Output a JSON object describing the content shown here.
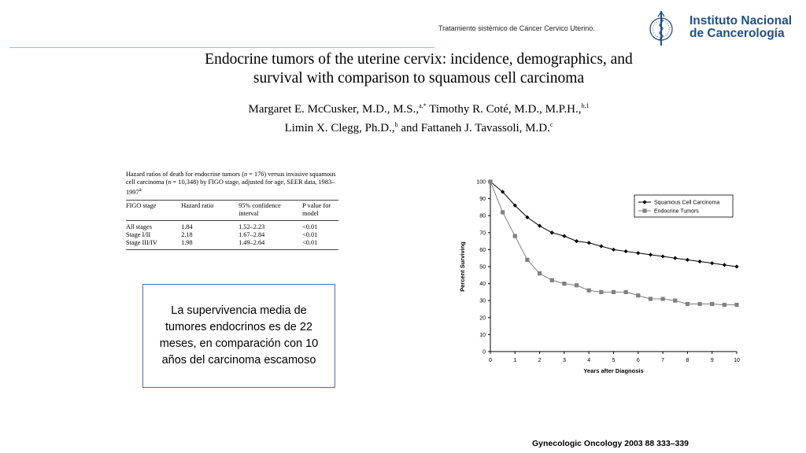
{
  "header": {
    "presentation_title": "Tratamiento sistémico  de Cáncer Cervico Uterino.",
    "institution_line1": "Instituto Nacional",
    "institution_line2": "de Cancerología",
    "brand_color": "#1f4f8c",
    "rule_color": "#8fc7cf"
  },
  "paper": {
    "title_line1": "Endocrine tumors of the uterine cervix: incidence, demographics, and",
    "title_line2": "survival with comparison to squamous cell carcinoma",
    "author_line1_a": "Margaret E. McCusker, M.D., M.S.,",
    "author_line1_a_sup": "a,*",
    "author_line1_b": " Timothy R. Coté, M.D., M.P.H.,",
    "author_line1_b_sup": "b,1",
    "author_line2_a": "Limin X. Clegg, Ph.D.,",
    "author_line2_a_sup": "b",
    "author_line2_b": " and Fattaneh J. Tavassoli, M.D.",
    "author_line2_b_sup": "c"
  },
  "hazard_table": {
    "caption_p1": "Hazard ratios of death for endocrine tumors (",
    "caption_n1": "n",
    "caption_p2": " = 176) versus invasive squamous cell carcinoma (",
    "caption_n2": "n",
    "caption_p3": " = 10,348) by FIGO stage, adjusted for age, SEER data, 1983–1997",
    "caption_sup": "a",
    "headers": [
      "FIGO stage",
      "Hazard ratio",
      "95% confidence interval",
      "P value for model"
    ],
    "rows": [
      [
        "All stages",
        "1.84",
        "1.52–2.23",
        "<0.01"
      ],
      [
        "Stage I/II",
        "2.18",
        "1.67–2.84",
        "<0.01"
      ],
      [
        "Stage III/IV",
        "1.98",
        "1.49–2.64",
        "<0.01"
      ]
    ]
  },
  "note": {
    "text": "La supervivencia media de tumores endocrinos es de 22 meses, en comparación con 10 años del carcinoma escamoso",
    "border_color": "#4a6eb3"
  },
  "citation": "Gynecologic Oncology 2003 88 333–339",
  "chart_data": {
    "type": "line",
    "xlabel": "Years after Diagnosis",
    "ylabel": "Percent Surviving",
    "xlim": [
      0,
      10
    ],
    "ylim": [
      0,
      100
    ],
    "xticks": [
      "0",
      "1",
      "2",
      "3",
      "4",
      "5",
      "6",
      "7",
      "8",
      "9",
      "10"
    ],
    "yticks": [
      "0",
      "10",
      "20",
      "30",
      "40",
      "50",
      "60",
      "70",
      "80",
      "90",
      "100"
    ],
    "grid": false,
    "legend_position": "top-right",
    "series": [
      {
        "name": "Squamous Cell Carcinoma",
        "marker": "diamond",
        "color": "#000000",
        "x": [
          0,
          0.5,
          1,
          1.5,
          2,
          2.5,
          3,
          3.5,
          4,
          4.5,
          5,
          5.5,
          6,
          6.5,
          7,
          7.5,
          8,
          8.5,
          9,
          9.5,
          10
        ],
        "values": [
          100,
          94,
          86,
          79,
          74,
          70,
          68,
          65,
          64,
          62,
          60,
          59,
          58,
          57,
          56,
          55,
          54,
          53,
          52,
          51,
          50
        ]
      },
      {
        "name": "Endocrine Tumors",
        "marker": "square",
        "color": "#808080",
        "x": [
          0,
          0.5,
          1,
          1.5,
          2,
          2.5,
          3,
          3.5,
          4,
          4.5,
          5,
          5.5,
          6,
          6.5,
          7,
          7.5,
          8,
          8.5,
          9,
          9.5,
          10
        ],
        "values": [
          100,
          82,
          68,
          54,
          46,
          42,
          40,
          39,
          36,
          35,
          35,
          35,
          33,
          31,
          31,
          30,
          28,
          28,
          28,
          27.5,
          27.5
        ]
      }
    ]
  }
}
